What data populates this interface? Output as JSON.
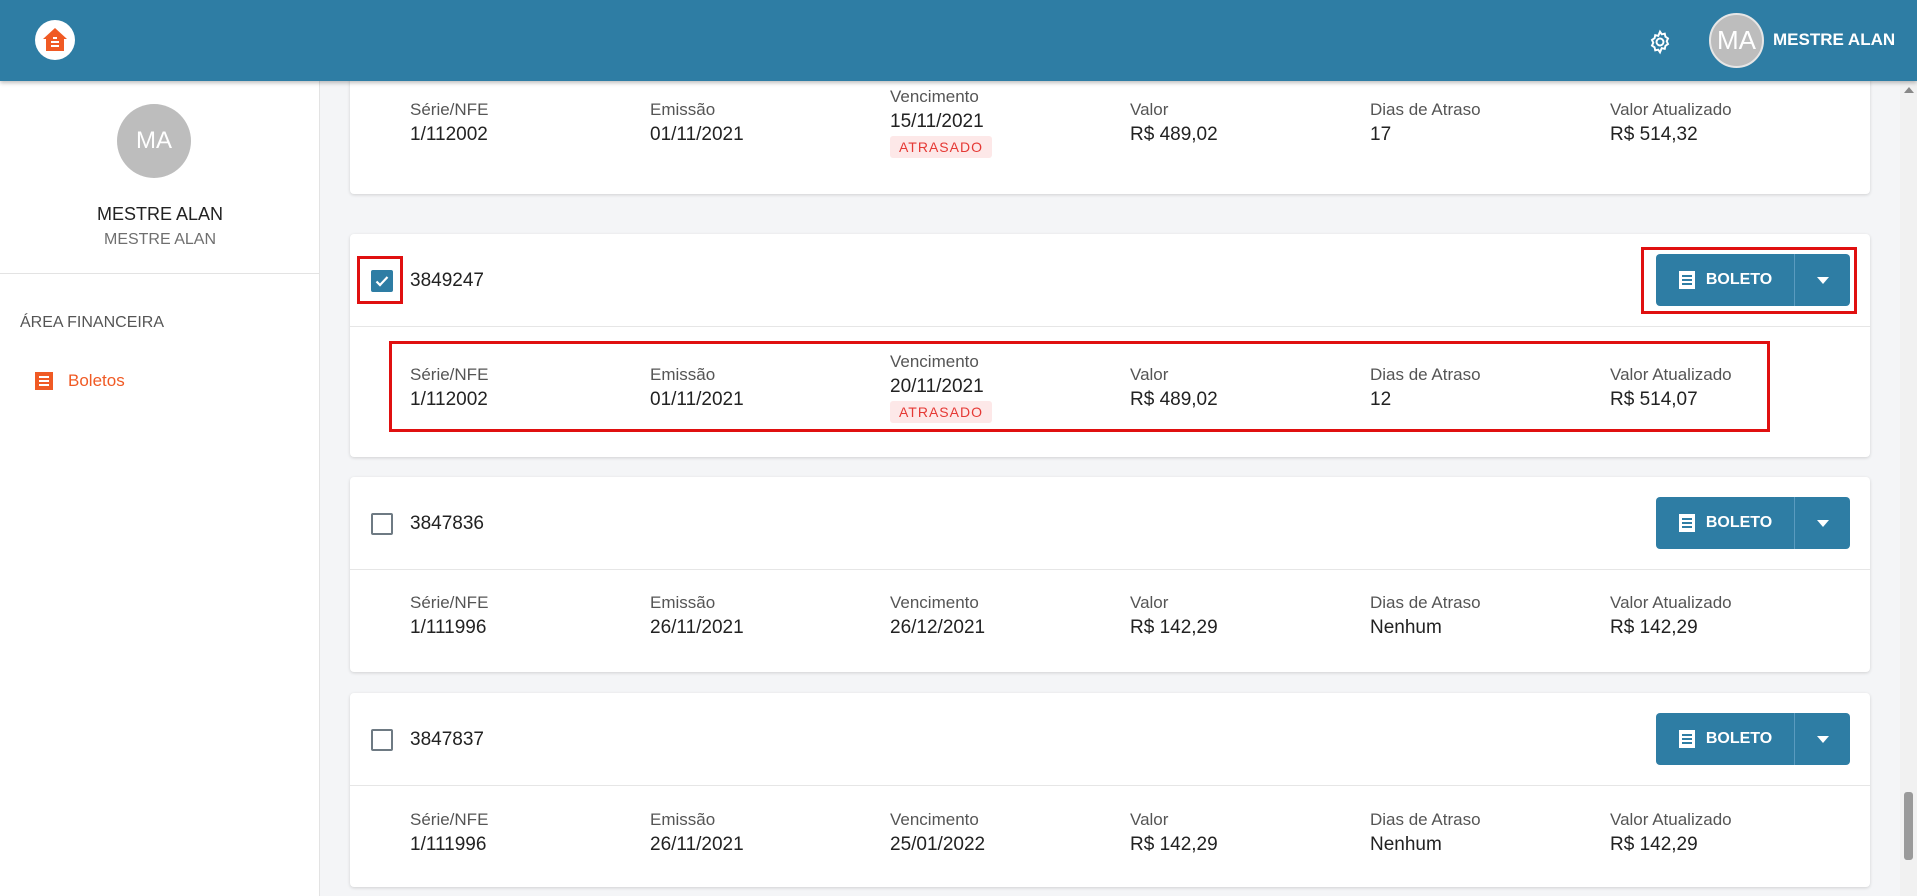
{
  "header": {
    "user_initials": "MA",
    "user_name": "MESTRE ALAN"
  },
  "sidebar": {
    "avatar_initials": "MA",
    "name": "MESTRE ALAN",
    "subname": "MESTRE ALAN",
    "section_title": "ÁREA FINANCEIRA",
    "items": [
      {
        "label": "Boletos",
        "icon": "document-list-icon",
        "color": "#f05a24"
      }
    ]
  },
  "colors": {
    "primary": "#2e7da4",
    "accent": "#f05a24",
    "overdue": "#e53935"
  },
  "labels": {
    "serie": "Série/NFE",
    "emissao": "Emissão",
    "vencimento": "Vencimento",
    "valor": "Valor",
    "dias": "Dias de Atraso",
    "valor_atualizado": "Valor Atualizado",
    "boleto_button": "BOLETO"
  },
  "boletos": [
    {
      "id": "",
      "checked": false,
      "serie": "1/112002",
      "emissao": "01/11/2021",
      "vencimento": "15/11/2021",
      "status": "ATRASADO",
      "valor": "R$ 489,02",
      "dias": "17",
      "valor_atualizado": "R$ 514,32"
    },
    {
      "id": "3849247",
      "checked": true,
      "serie": "1/112002",
      "emissao": "01/11/2021",
      "vencimento": "20/11/2021",
      "status": "ATRASADO",
      "valor": "R$ 489,02",
      "dias": "12",
      "valor_atualizado": "R$ 514,07"
    },
    {
      "id": "3847836",
      "checked": false,
      "serie": "1/111996",
      "emissao": "26/11/2021",
      "vencimento": "26/12/2021",
      "status": "",
      "valor": "R$ 142,29",
      "dias": "Nenhum",
      "valor_atualizado": "R$ 142,29"
    },
    {
      "id": "3847837",
      "checked": false,
      "serie": "1/111996",
      "emissao": "26/11/2021",
      "vencimento": "25/01/2022",
      "status": "",
      "valor": "R$ 142,29",
      "dias": "Nenhum",
      "valor_atualizado": "R$ 142,29"
    }
  ]
}
